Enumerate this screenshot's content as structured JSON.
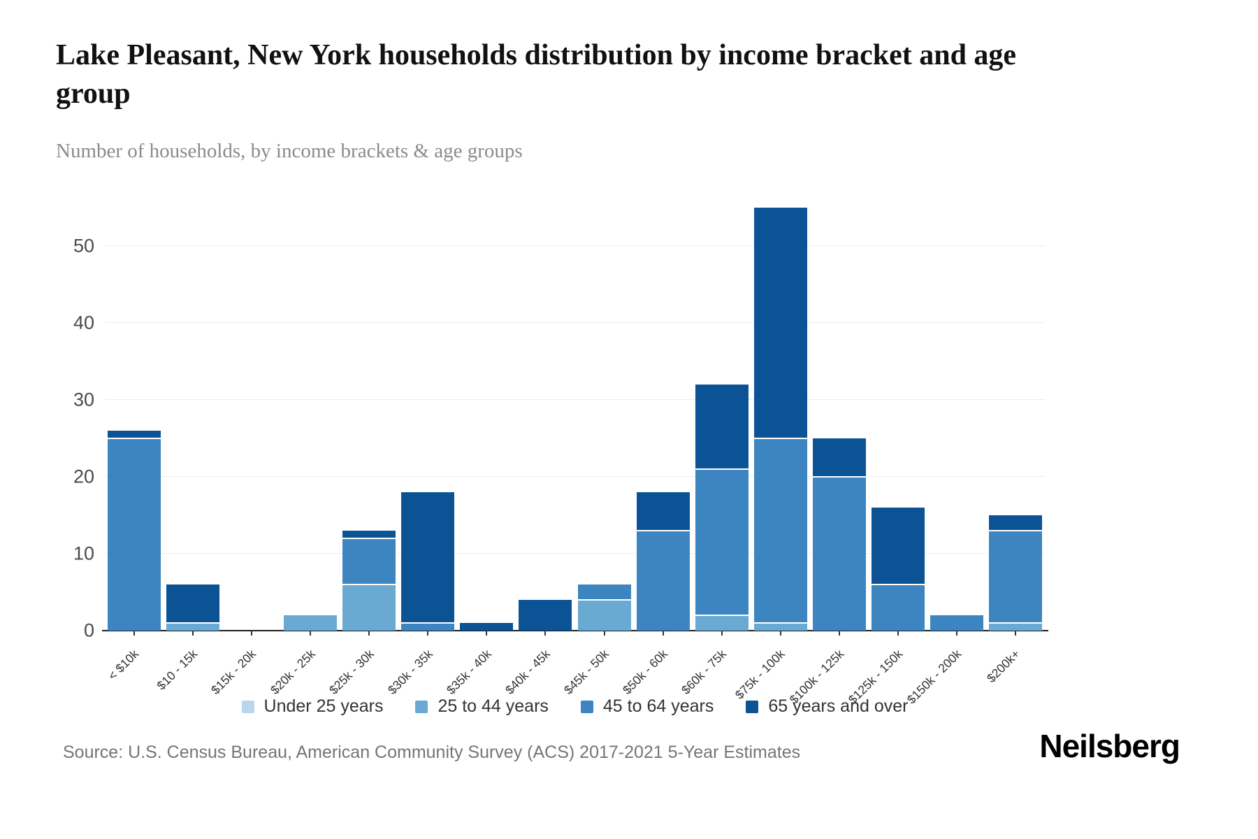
{
  "header": {
    "title": "Lake Pleasant, New York households distribution by income bracket and age group",
    "subtitle": "Number of households, by income brackets & age groups"
  },
  "source": {
    "text": "Source: U.S. Census Bureau, American Community Survey (ACS) 2017-2021 5-Year Estimates"
  },
  "branding": {
    "logo_text": "Neilsberg"
  },
  "colors": {
    "under_25": "#b9d7ea",
    "age_25_44": "#6aaad2",
    "age_45_64": "#3d85c1",
    "age_65_over": "#0b5394",
    "gridline": "#ececec",
    "axis": "#1c1c1c",
    "tick_text": "#4a4a4a"
  },
  "chart_data": {
    "type": "bar",
    "stacked": true,
    "grid": true,
    "legend_position": "bottom",
    "title": "Lake Pleasant, New York households distribution by income bracket and age group",
    "subtitle": "Number of households, by income brackets & age groups",
    "xlabel": "",
    "ylabel": "Number of households",
    "ylim": [
      0,
      56.8
    ],
    "yticks": [
      0,
      10,
      20,
      30,
      40,
      50
    ],
    "categories": [
      "< $10k",
      "$10 - 15k",
      "$15k - 20k",
      "$20k - 25k",
      "$25k - 30k",
      "$30k - 35k",
      "$35k - 40k",
      "$40k - 45k",
      "$45k - 50k",
      "$50k - 60k",
      "$60k - 75k",
      "$75k - 100k",
      "$100k - 125k",
      "$125k - 150k",
      "$150k - 200k",
      "$200k+"
    ],
    "series": [
      {
        "name": "Under 25 years",
        "color": "#b9d7ea",
        "values": [
          0,
          0,
          0,
          0,
          0,
          0,
          0,
          0,
          0,
          0,
          0,
          0,
          0,
          0,
          0,
          0
        ]
      },
      {
        "name": "25 to 44 years",
        "color": "#6aaad2",
        "values": [
          0,
          1,
          0,
          2,
          6,
          0,
          0,
          0,
          4,
          0,
          2,
          1,
          0,
          0,
          0,
          1
        ]
      },
      {
        "name": "45 to 64 years",
        "color": "#3d85c1",
        "values": [
          25,
          0,
          0,
          0,
          6,
          1,
          0,
          0,
          2,
          13,
          19,
          24,
          20,
          6,
          2,
          12
        ]
      },
      {
        "name": "65 years and over",
        "color": "#0b5394",
        "values": [
          1,
          5,
          0,
          0,
          1,
          17,
          1,
          4,
          0,
          5,
          11,
          30,
          5,
          10,
          0,
          2
        ]
      }
    ],
    "totals": [
      26,
      6,
      0,
      2,
      13,
      18,
      1,
      4,
      6,
      18,
      32,
      55,
      25,
      16,
      2,
      15
    ]
  }
}
